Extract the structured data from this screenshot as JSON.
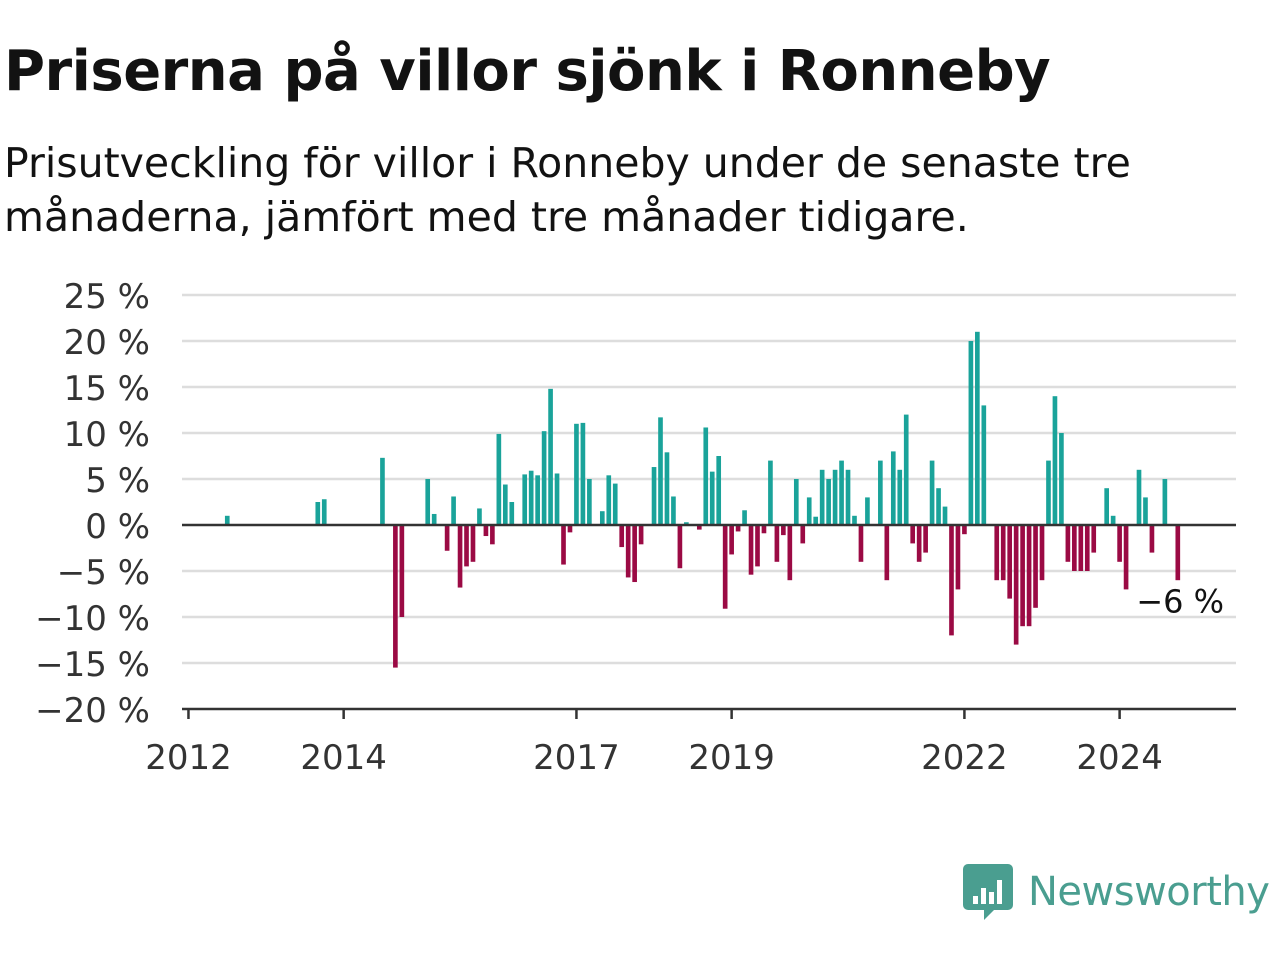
{
  "title": "Priserna på villor sjönk i Ronneby",
  "subtitle": "Prisutveckling för villor i Ronneby under de senaste tre månaderna, jämfört med tre månader tidigare.",
  "brand": {
    "name": "Newsworthy",
    "color": "#4a9e90",
    "icon": "newsworthy-logo-icon"
  },
  "colors": {
    "positive": "#1aa39a",
    "negative": "#9b0a44",
    "grid": "#dddddd",
    "axis": "#333333"
  },
  "chart_data": {
    "type": "bar",
    "ylim": [
      -20,
      25
    ],
    "y_ticks": [
      25,
      20,
      15,
      10,
      5,
      0,
      -5,
      -10,
      -15,
      -20
    ],
    "y_tick_labels": [
      "25 %",
      "20 %",
      "15 %",
      "10 %",
      "5 %",
      "0 %",
      "−5 %",
      "−10 %",
      "−15 %",
      "−20 %"
    ],
    "x_ticks": [
      "2012",
      "2014",
      "2017",
      "2019",
      "2022",
      "2024"
    ],
    "x_tick_positions": [
      "2012-01",
      "2014-01",
      "2017-01",
      "2019-01",
      "2022-01",
      "2024-01"
    ],
    "xlim": [
      "2011-12",
      "2025-07"
    ],
    "grid": true,
    "annotation": {
      "text": "−6 %",
      "date": "2024-11",
      "value": -6
    },
    "points": [
      {
        "date": "2012-07",
        "value": 1
      },
      {
        "date": "2013-09",
        "value": 2.5
      },
      {
        "date": "2013-10",
        "value": 2.8
      },
      {
        "date": "2014-07",
        "value": 7.3
      },
      {
        "date": "2014-09",
        "value": -15.5
      },
      {
        "date": "2014-10",
        "value": -10
      },
      {
        "date": "2015-02",
        "value": 5
      },
      {
        "date": "2015-03",
        "value": 1.2
      },
      {
        "date": "2015-05",
        "value": -2.8
      },
      {
        "date": "2015-06",
        "value": 3.1
      },
      {
        "date": "2015-07",
        "value": -6.8
      },
      {
        "date": "2015-08",
        "value": -4.5
      },
      {
        "date": "2015-09",
        "value": -4
      },
      {
        "date": "2015-10",
        "value": 1.8
      },
      {
        "date": "2015-11",
        "value": -1.2
      },
      {
        "date": "2015-12",
        "value": -2.1
      },
      {
        "date": "2016-01",
        "value": 9.9
      },
      {
        "date": "2016-02",
        "value": 4.4
      },
      {
        "date": "2016-03",
        "value": 2.5
      },
      {
        "date": "2016-05",
        "value": 5.5
      },
      {
        "date": "2016-06",
        "value": 5.9
      },
      {
        "date": "2016-07",
        "value": 5.4
      },
      {
        "date": "2016-08",
        "value": 10.2
      },
      {
        "date": "2016-09",
        "value": 14.8
      },
      {
        "date": "2016-10",
        "value": 5.6
      },
      {
        "date": "2016-11",
        "value": -4.3
      },
      {
        "date": "2016-12",
        "value": -0.8
      },
      {
        "date": "2017-01",
        "value": 11
      },
      {
        "date": "2017-02",
        "value": 11.1
      },
      {
        "date": "2017-03",
        "value": 5
      },
      {
        "date": "2017-05",
        "value": 1.5
      },
      {
        "date": "2017-06",
        "value": 5.4
      },
      {
        "date": "2017-07",
        "value": 4.5
      },
      {
        "date": "2017-08",
        "value": -2.4
      },
      {
        "date": "2017-09",
        "value": -5.7
      },
      {
        "date": "2017-10",
        "value": -6.2
      },
      {
        "date": "2017-11",
        "value": -2.1
      },
      {
        "date": "2018-01",
        "value": 6.3
      },
      {
        "date": "2018-02",
        "value": 11.7
      },
      {
        "date": "2018-03",
        "value": 7.9
      },
      {
        "date": "2018-04",
        "value": 3.1
      },
      {
        "date": "2018-05",
        "value": -4.7
      },
      {
        "date": "2018-06",
        "value": 0.3
      },
      {
        "date": "2018-08",
        "value": -0.5
      },
      {
        "date": "2018-09",
        "value": 10.6
      },
      {
        "date": "2018-10",
        "value": 5.8
      },
      {
        "date": "2018-11",
        "value": 7.5
      },
      {
        "date": "2018-12",
        "value": -9.1
      },
      {
        "date": "2019-01",
        "value": -3.2
      },
      {
        "date": "2019-02",
        "value": -0.7
      },
      {
        "date": "2019-03",
        "value": 1.6
      },
      {
        "date": "2019-04",
        "value": -5.4
      },
      {
        "date": "2019-05",
        "value": -4.5
      },
      {
        "date": "2019-06",
        "value": -0.9
      },
      {
        "date": "2019-07",
        "value": 7
      },
      {
        "date": "2019-08",
        "value": -4
      },
      {
        "date": "2019-09",
        "value": -1.1
      },
      {
        "date": "2019-10",
        "value": -6
      },
      {
        "date": "2019-11",
        "value": 5
      },
      {
        "date": "2019-12",
        "value": -2
      },
      {
        "date": "2020-01",
        "value": 3
      },
      {
        "date": "2020-02",
        "value": 0.9
      },
      {
        "date": "2020-03",
        "value": 6
      },
      {
        "date": "2020-04",
        "value": 5
      },
      {
        "date": "2020-05",
        "value": 6
      },
      {
        "date": "2020-06",
        "value": 7
      },
      {
        "date": "2020-07",
        "value": 6
      },
      {
        "date": "2020-08",
        "value": 1
      },
      {
        "date": "2020-09",
        "value": -4
      },
      {
        "date": "2020-10",
        "value": 3
      },
      {
        "date": "2020-12",
        "value": 7
      },
      {
        "date": "2021-01",
        "value": -6
      },
      {
        "date": "2021-02",
        "value": 8
      },
      {
        "date": "2021-03",
        "value": 6
      },
      {
        "date": "2021-04",
        "value": 12
      },
      {
        "date": "2021-05",
        "value": -2
      },
      {
        "date": "2021-06",
        "value": -4
      },
      {
        "date": "2021-07",
        "value": -3
      },
      {
        "date": "2021-08",
        "value": 7
      },
      {
        "date": "2021-09",
        "value": 4
      },
      {
        "date": "2021-10",
        "value": 2
      },
      {
        "date": "2021-11",
        "value": -12
      },
      {
        "date": "2021-12",
        "value": -7
      },
      {
        "date": "2022-01",
        "value": -1
      },
      {
        "date": "2022-02",
        "value": 20
      },
      {
        "date": "2022-03",
        "value": 21
      },
      {
        "date": "2022-04",
        "value": 13
      },
      {
        "date": "2022-06",
        "value": -6
      },
      {
        "date": "2022-07",
        "value": -6
      },
      {
        "date": "2022-08",
        "value": -8
      },
      {
        "date": "2022-09",
        "value": -13
      },
      {
        "date": "2022-10",
        "value": -11
      },
      {
        "date": "2022-11",
        "value": -11
      },
      {
        "date": "2022-12",
        "value": -9
      },
      {
        "date": "2023-01",
        "value": -6
      },
      {
        "date": "2023-02",
        "value": 7
      },
      {
        "date": "2023-03",
        "value": 14
      },
      {
        "date": "2023-04",
        "value": 10
      },
      {
        "date": "2023-05",
        "value": -4
      },
      {
        "date": "2023-06",
        "value": -5
      },
      {
        "date": "2023-07",
        "value": -5
      },
      {
        "date": "2023-08",
        "value": -5
      },
      {
        "date": "2023-09",
        "value": -3
      },
      {
        "date": "2023-11",
        "value": 4
      },
      {
        "date": "2023-12",
        "value": 1
      },
      {
        "date": "2024-01",
        "value": -4
      },
      {
        "date": "2024-02",
        "value": -7
      },
      {
        "date": "2024-04",
        "value": 6
      },
      {
        "date": "2024-05",
        "value": 3
      },
      {
        "date": "2024-06",
        "value": -3
      },
      {
        "date": "2024-08",
        "value": 5
      },
      {
        "date": "2024-10",
        "value": -6
      }
    ]
  }
}
